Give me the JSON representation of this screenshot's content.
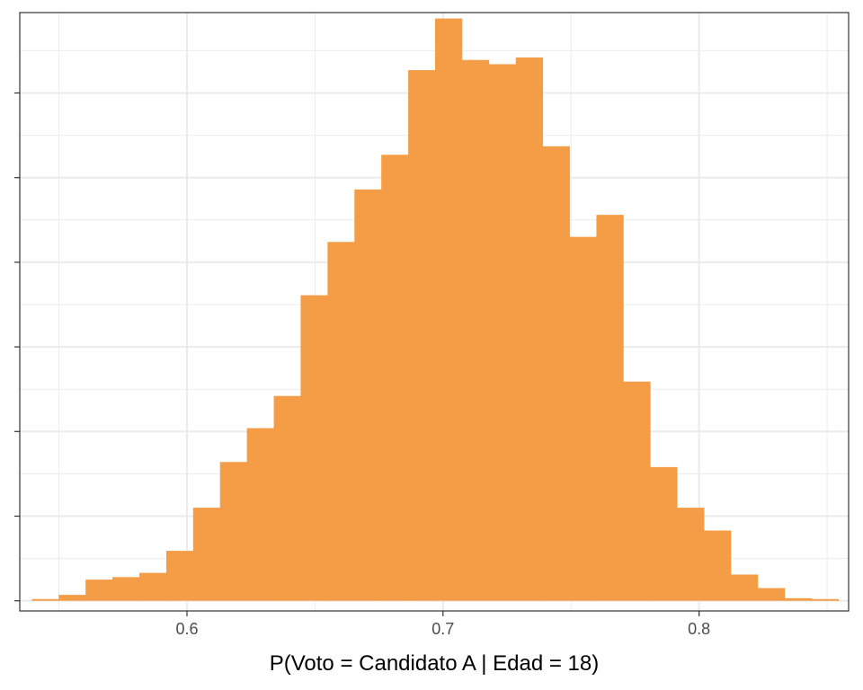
{
  "chart_data": {
    "type": "histogram",
    "title": "",
    "xlabel": "P(Voto = Candidato A | Edad = 18)",
    "ylabel": "",
    "xlim": [
      0.5347,
      0.8584
    ],
    "ylim": [
      -0.12,
      6.95
    ],
    "bin_width": 0.0105,
    "bin_start": 0.5394,
    "x_ticks": [
      0.6,
      0.7,
      0.8
    ],
    "x_tick_labels": [
      "0.6",
      "0.7",
      "0.8"
    ],
    "y_ticks": [
      0,
      1,
      2,
      3,
      4,
      5,
      6
    ],
    "y_tick_labels": [],
    "values": [
      0.02,
      0.07,
      0.25,
      0.28,
      0.33,
      0.59,
      1.1,
      1.64,
      2.04,
      2.42,
      3.61,
      4.24,
      4.86,
      5.27,
      6.27,
      6.88,
      6.39,
      6.34,
      6.42,
      5.37,
      4.3,
      4.56,
      2.59,
      1.58,
      1.1,
      0.83,
      0.31,
      0.15,
      0.03,
      0.02
    ],
    "bar_color": "#F59C46",
    "grid": true,
    "legend": "none"
  }
}
